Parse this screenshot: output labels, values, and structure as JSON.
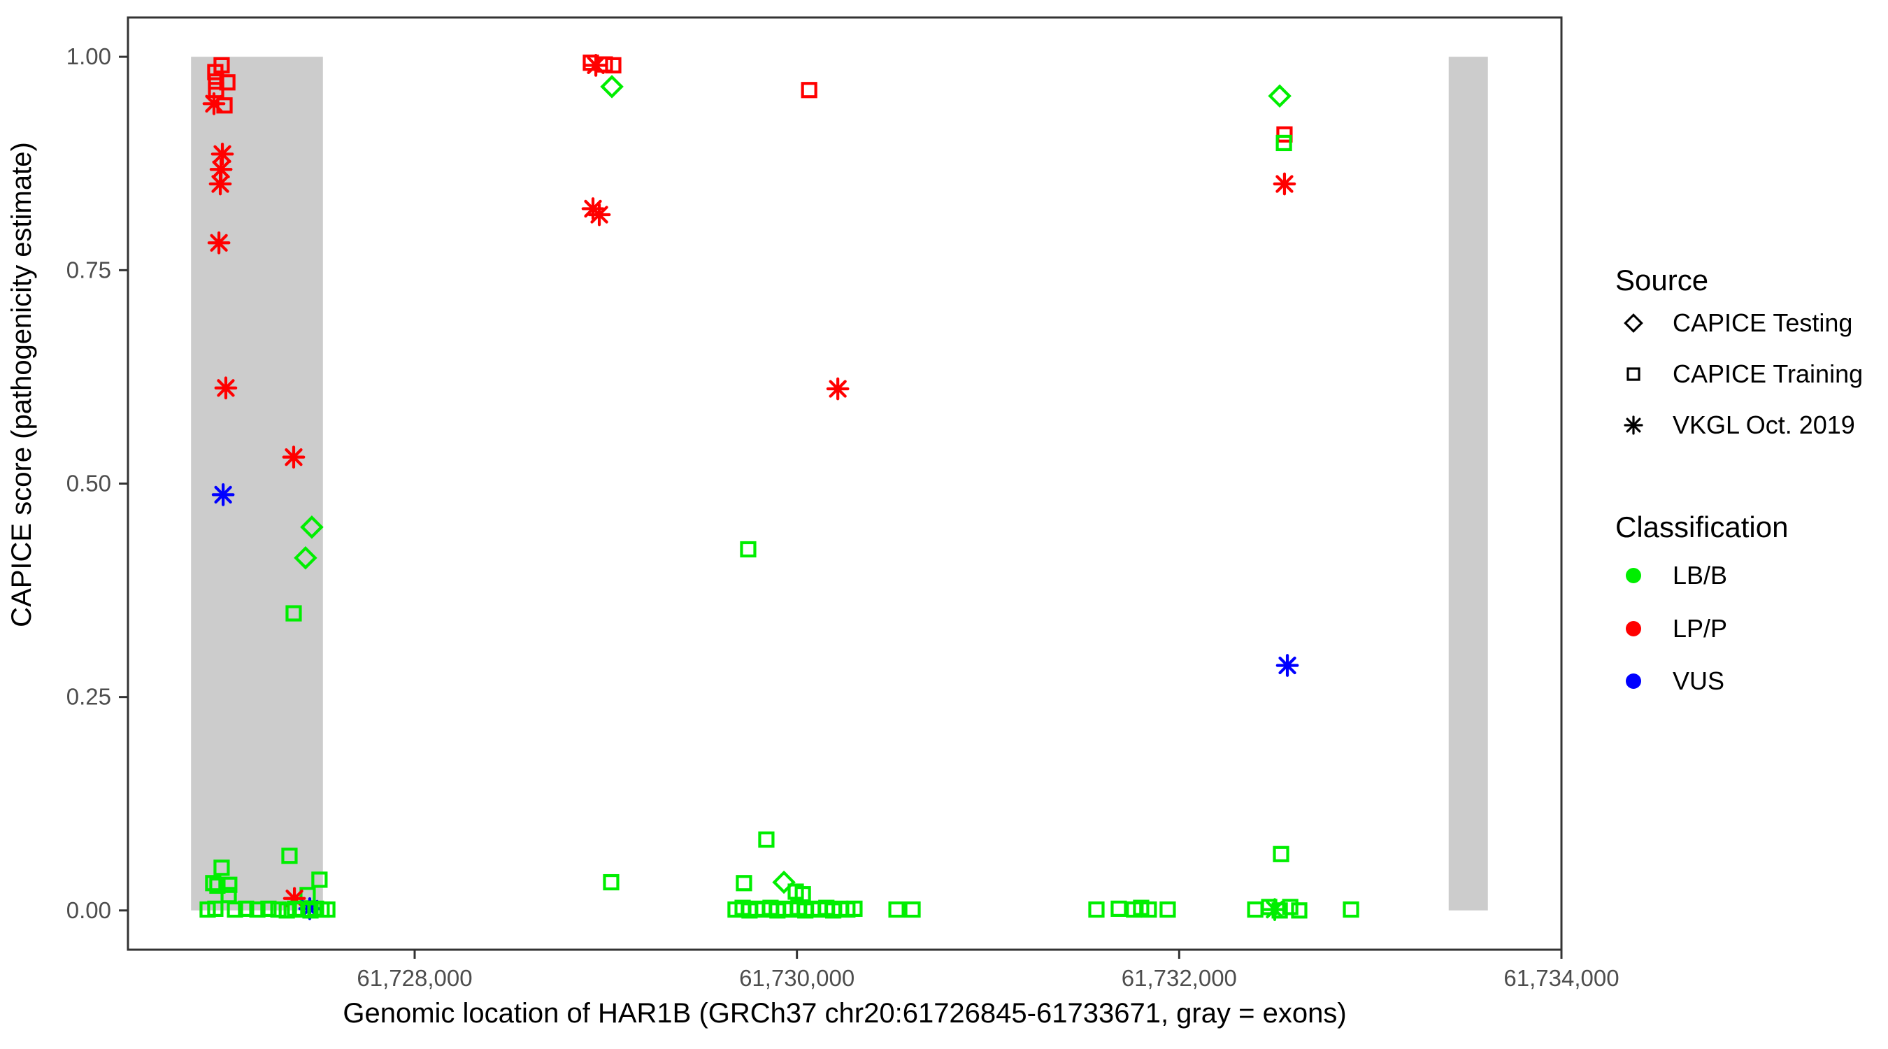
{
  "chart_data": {
    "type": "scatter",
    "xlabel": "Genomic location of HAR1B (GRCh37 chr20:61726845-61733671, gray = exons)",
    "ylabel": "CAPICE score (pathogenicity estimate)",
    "xlim": [
      61726500,
      61734000
    ],
    "ylim": [
      -0.046,
      1.046
    ],
    "x_ticks": [
      {
        "value": 61728000,
        "label": "61,728,000"
      },
      {
        "value": 61730000,
        "label": "61,730,000"
      },
      {
        "value": 61732000,
        "label": "61,732,000"
      },
      {
        "value": 61734000,
        "label": "61,734,000"
      }
    ],
    "y_ticks": [
      {
        "value": 0.0,
        "label": "0.00"
      },
      {
        "value": 0.25,
        "label": "0.25"
      },
      {
        "value": 0.5,
        "label": "0.50"
      },
      {
        "value": 0.75,
        "label": "0.75"
      },
      {
        "value": 1.0,
        "label": "1.00"
      }
    ],
    "grid": false,
    "exon_bands": [
      {
        "x_start": 61726830,
        "x_end": 61727520,
        "y_start": 0.0,
        "y_end": 1.0
      },
      {
        "x_start": 61733410,
        "x_end": 61733615,
        "y_start": 0.0,
        "y_end": 1.0
      }
    ],
    "exon_band_color": "#CCCCCC",
    "colors": {
      "LB/B": "#00EE00",
      "LP/P": "#FF0000",
      "VUS": "#0000FF"
    },
    "shape_key": {
      "sq": "open square = CAPICE Training",
      "di": "open diamond = CAPICE Testing",
      "st": "asterisk = VKGL Oct. 2019"
    },
    "legend": {
      "position": "right",
      "source": {
        "title": "Source",
        "items": [
          {
            "label": "CAPICE Testing",
            "shape": "di"
          },
          {
            "label": "CAPICE Training",
            "shape": "sq"
          },
          {
            "label": "VKGL Oct. 2019",
            "shape": "st"
          }
        ]
      },
      "classification": {
        "title": "Classification",
        "items": [
          {
            "label": "LB/B",
            "color": "#00EE00"
          },
          {
            "label": "LP/P",
            "color": "#FF0000"
          },
          {
            "label": "VUS",
            "color": "#0000FF"
          }
        ]
      }
    },
    "point_fields": [
      "x",
      "y",
      "shape",
      "classification"
    ],
    "points": [
      [
        61726990,
        0.99,
        "sq",
        "LP/P"
      ],
      [
        61726957,
        0.982,
        "sq",
        "LP/P"
      ],
      [
        61726961,
        0.971,
        "sq",
        "LP/P"
      ],
      [
        61727020,
        0.97,
        "sq",
        "LP/P"
      ],
      [
        61726961,
        0.961,
        "sq",
        "LP/P"
      ],
      [
        61726950,
        0.945,
        "st",
        "LP/P"
      ],
      [
        61727005,
        0.943,
        "sq",
        "LP/P"
      ],
      [
        61726994,
        0.886,
        "st",
        "LP/P"
      ],
      [
        61726987,
        0.868,
        "st",
        "LP/P"
      ],
      [
        61726983,
        0.851,
        "st",
        "LP/P"
      ],
      [
        61726976,
        0.782,
        "st",
        "LP/P"
      ],
      [
        61727012,
        0.612,
        "st",
        "LP/P"
      ],
      [
        61727367,
        0.531,
        "st",
        "LP/P"
      ],
      [
        61726998,
        0.487,
        "st",
        "VUS"
      ],
      [
        61727462,
        0.449,
        "di",
        "LB/B"
      ],
      [
        61727429,
        0.413,
        "di",
        "LB/B"
      ],
      [
        61727367,
        0.348,
        "sq",
        "LB/B"
      ],
      [
        61727345,
        0.064,
        "sq",
        "LB/B"
      ],
      [
        61726990,
        0.05,
        "sq",
        "LB/B"
      ],
      [
        61726946,
        0.032,
        "sq",
        "LB/B"
      ],
      [
        61726968,
        0.029,
        "sq",
        "LB/B"
      ],
      [
        61727030,
        0.03,
        "sq",
        "LB/B"
      ],
      [
        61727502,
        0.036,
        "sq",
        "LB/B"
      ],
      [
        61727027,
        0.018,
        "sq",
        "LB/B"
      ],
      [
        61727440,
        0.018,
        "sq",
        "LB/B"
      ],
      [
        61727371,
        0.014,
        "st",
        "LP/P"
      ],
      [
        61727451,
        0.002,
        "st",
        "VUS"
      ],
      [
        61726917,
        0.001,
        "sq",
        "LB/B"
      ],
      [
        61726957,
        0.002,
        "sq",
        "LB/B"
      ],
      [
        61727060,
        0.001,
        "sq",
        "LB/B"
      ],
      [
        61727118,
        0.002,
        "sq",
        "LB/B"
      ],
      [
        61727177,
        0.001,
        "sq",
        "LB/B"
      ],
      [
        61727235,
        0.002,
        "sq",
        "LB/B"
      ],
      [
        61727287,
        0.001,
        "sq",
        "LB/B"
      ],
      [
        61727331,
        0.0,
        "sq",
        "LB/B"
      ],
      [
        61727374,
        0.002,
        "sq",
        "LB/B"
      ],
      [
        61727411,
        0.001,
        "sq",
        "LB/B"
      ],
      [
        61727455,
        0.0,
        "sq",
        "LB/B"
      ],
      [
        61727484,
        0.002,
        "sq",
        "LB/B"
      ],
      [
        61727513,
        0.001,
        "sq",
        "LB/B"
      ],
      [
        61727543,
        0.001,
        "sq",
        "LB/B"
      ],
      [
        61728922,
        0.993,
        "sq",
        "LP/P"
      ],
      [
        61728948,
        0.99,
        "st",
        "LP/P"
      ],
      [
        61728995,
        0.991,
        "sq",
        "LP/P"
      ],
      [
        61729039,
        0.99,
        "sq",
        "LP/P"
      ],
      [
        61729032,
        0.965,
        "di",
        "LB/B"
      ],
      [
        61728933,
        0.822,
        "st",
        "LP/P"
      ],
      [
        61728966,
        0.815,
        "st",
        "LP/P"
      ],
      [
        61730064,
        0.961,
        "sq",
        "LP/P"
      ],
      [
        61730214,
        0.611,
        "st",
        "LP/P"
      ],
      [
        61729745,
        0.423,
        "sq",
        "LB/B"
      ],
      [
        61729028,
        0.033,
        "sq",
        "LB/B"
      ],
      [
        61729840,
        0.083,
        "sq",
        "LB/B"
      ],
      [
        61729723,
        0.032,
        "sq",
        "LB/B"
      ],
      [
        61729932,
        0.033,
        "di",
        "LB/B"
      ],
      [
        61729994,
        0.022,
        "sq",
        "LB/B"
      ],
      [
        61730031,
        0.019,
        "sq",
        "LB/B"
      ],
      [
        61729679,
        0.001,
        "sq",
        "LB/B"
      ],
      [
        61729716,
        0.003,
        "sq",
        "LB/B"
      ],
      [
        61729752,
        0.0,
        "sq",
        "LB/B"
      ],
      [
        61729789,
        0.002,
        "sq",
        "LB/B"
      ],
      [
        61729825,
        0.001,
        "sq",
        "LB/B"
      ],
      [
        61729862,
        0.003,
        "sq",
        "LB/B"
      ],
      [
        61729898,
        0.0,
        "sq",
        "LB/B"
      ],
      [
        61729935,
        0.002,
        "sq",
        "LB/B"
      ],
      [
        61729971,
        0.001,
        "sq",
        "LB/B"
      ],
      [
        61730008,
        0.003,
        "sq",
        "LB/B"
      ],
      [
        61730044,
        0.0,
        "sq",
        "LB/B"
      ],
      [
        61730081,
        0.002,
        "sq",
        "LB/B"
      ],
      [
        61730117,
        0.001,
        "sq",
        "LB/B"
      ],
      [
        61730154,
        0.003,
        "sq",
        "LB/B"
      ],
      [
        61730190,
        0.0,
        "sq",
        "LB/B"
      ],
      [
        61730227,
        0.002,
        "sq",
        "LB/B"
      ],
      [
        61730264,
        0.001,
        "sq",
        "LB/B"
      ],
      [
        61730301,
        0.002,
        "sq",
        "LB/B"
      ],
      [
        61730521,
        0.001,
        "sq",
        "LB/B"
      ],
      [
        61730605,
        0.001,
        "sq",
        "LB/B"
      ],
      [
        61731567,
        0.001,
        "sq",
        "LB/B"
      ],
      [
        61731684,
        0.002,
        "sq",
        "LB/B"
      ],
      [
        61731764,
        0.001,
        "sq",
        "LB/B"
      ],
      [
        61731801,
        0.003,
        "sq",
        "LB/B"
      ],
      [
        61731841,
        0.001,
        "sq",
        "LB/B"
      ],
      [
        61731940,
        0.001,
        "sq",
        "LB/B"
      ],
      [
        61732526,
        0.954,
        "di",
        "LB/B"
      ],
      [
        61732551,
        0.909,
        "sq",
        "LP/P"
      ],
      [
        61732548,
        0.899,
        "sq",
        "LB/B"
      ],
      [
        61732551,
        0.851,
        "st",
        "LP/P"
      ],
      [
        61732566,
        0.287,
        "st",
        "VUS"
      ],
      [
        61732533,
        0.066,
        "sq",
        "LB/B"
      ],
      [
        61732398,
        0.001,
        "sq",
        "LB/B"
      ],
      [
        61732471,
        0.004,
        "sq",
        "LB/B"
      ],
      [
        61732500,
        0.001,
        "st",
        "LB/B"
      ],
      [
        61732526,
        0.0,
        "sq",
        "LB/B"
      ],
      [
        61732581,
        0.004,
        "sq",
        "LB/B"
      ],
      [
        61732628,
        0.0,
        "sq",
        "LB/B"
      ],
      [
        61732899,
        0.001,
        "sq",
        "LB/B"
      ]
    ]
  }
}
